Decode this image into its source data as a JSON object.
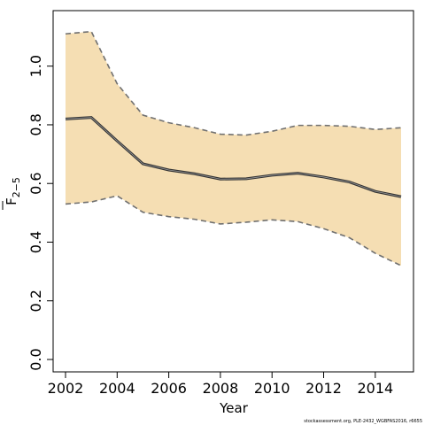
{
  "chart_data": {
    "type": "area",
    "title": "",
    "xlabel": "Year",
    "ylabel": "F",
    "ylabel_subscript": "2−5",
    "footer": "stockassessment.org, PLE-2432_WGBFAS2016, r6655",
    "xlim": [
      2002,
      2015
    ],
    "ylim": [
      0,
      1.15
    ],
    "x_ticks": [
      2002,
      2004,
      2006,
      2008,
      2010,
      2012,
      2014
    ],
    "y_ticks": [
      0.0,
      0.2,
      0.4,
      0.6,
      0.8,
      1.0
    ],
    "x_tick_labels": [
      "2002",
      "2004",
      "2006",
      "2008",
      "2010",
      "2012",
      "2014"
    ],
    "y_tick_labels": [
      "0.0",
      "0.2",
      "0.4",
      "0.6",
      "0.8",
      "1.0"
    ],
    "grid": false,
    "x": [
      2002,
      2003,
      2004,
      2005,
      2006,
      2007,
      2008,
      2009,
      2010,
      2011,
      2012,
      2013,
      2014,
      2015
    ],
    "estimate": [
      0.82,
      0.825,
      0.745,
      0.667,
      0.646,
      0.633,
      0.615,
      0.616,
      0.628,
      0.635,
      0.622,
      0.605,
      0.573,
      0.555
    ],
    "lower": [
      0.53,
      0.537,
      0.558,
      0.502,
      0.487,
      0.478,
      0.462,
      0.468,
      0.476,
      0.47,
      0.446,
      0.415,
      0.362,
      0.32
    ],
    "upper": [
      1.11,
      1.118,
      0.94,
      0.833,
      0.807,
      0.79,
      0.768,
      0.765,
      0.778,
      0.798,
      0.798,
      0.795,
      0.784,
      0.79
    ],
    "colors": {
      "band": "#f5deb3",
      "estimate_line": "#333333",
      "bound_line": "#707070",
      "axis": "#000000"
    }
  }
}
